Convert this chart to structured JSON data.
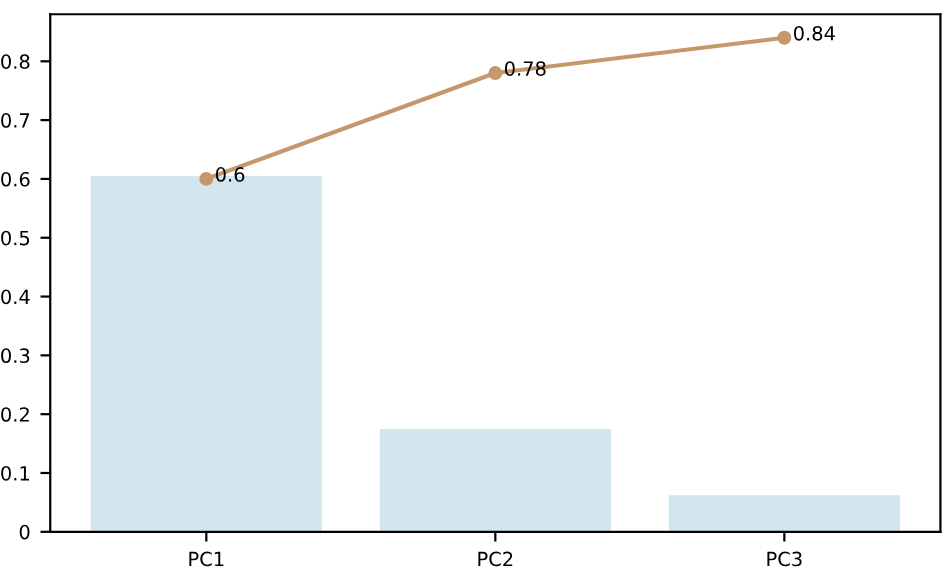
{
  "chart_data": {
    "type": "bar",
    "categories": [
      "PC1",
      "PC2",
      "PC3"
    ],
    "series": [
      {
        "color": "#d4e6ed",
        "values": [
          0.605,
          0.175,
          0.062
        ]
      },
      {
        "type": "line",
        "color": "#c4986c",
        "values": [
          0.6,
          0.78,
          0.84
        ],
        "value_labels": [
          "0.6",
          "0.78",
          "0.84"
        ],
        "marker": "circle"
      }
    ],
    "ylim": [
      0,
      0.88
    ],
    "yticks": [
      0,
      0.1,
      0.2,
      0.3,
      0.4,
      0.5,
      0.6,
      0.7,
      0.8
    ],
    "grid": false,
    "legend": false
  }
}
